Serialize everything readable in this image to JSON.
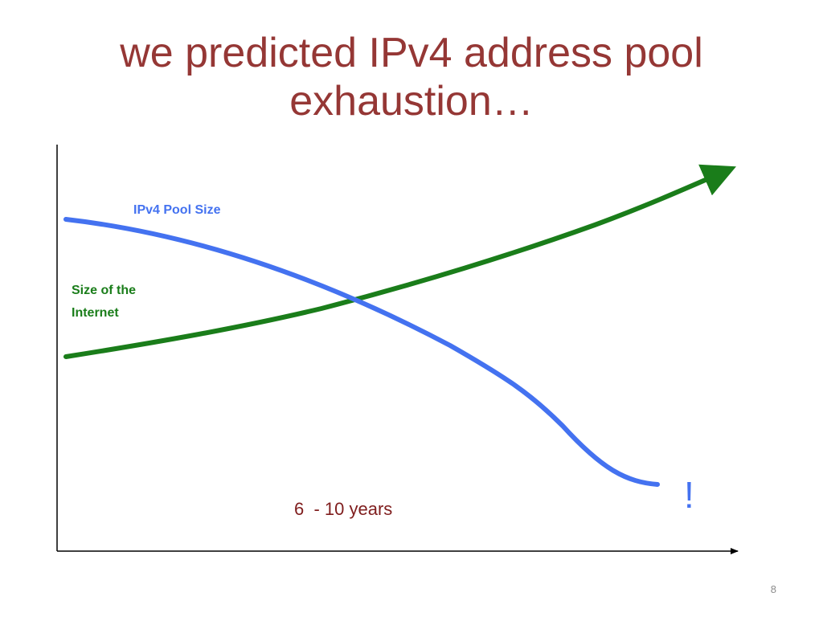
{
  "slide": {
    "title_line1": "we predicted IPv4 address pool",
    "title_line2": "exhaustion…",
    "page_number": "8"
  },
  "diagram": {
    "pool_label": "IPv4 Pool Size",
    "internet_label_line1": "Size of the",
    "internet_label_line2": "Internet",
    "years_label": "6  - 10 years",
    "exclamation": "!"
  },
  "colors": {
    "title": "#953735",
    "pool_curve": "#4472f0",
    "internet_curve": "#1a7d1a",
    "axes": "#000000",
    "years_text": "#7f1d1d",
    "exclamation": "#4472f0",
    "page_number": "#8c8c8c"
  }
}
